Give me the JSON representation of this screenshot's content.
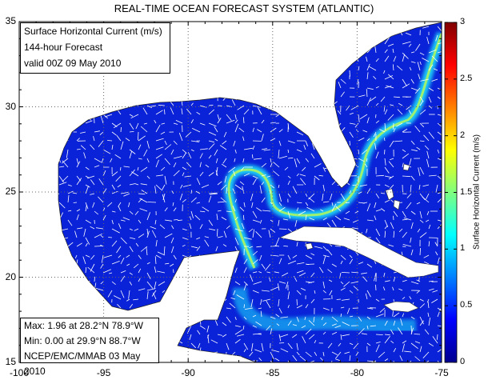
{
  "title": "REAL-TIME OCEAN FORECAST SYSTEM (ATLANTIC)",
  "info_box": {
    "variable": "Surface Horizontal Current (m/s)",
    "forecast": "144-hour Forecast",
    "valid": "valid 00Z 09 May 2010"
  },
  "stats_box": {
    "max": "Max: 1.96 at 28.2°N 78.9°W",
    "min": "Min: 0.00 at 29.9°N 88.7°W",
    "source": "NCEP/EMC/MMAB 03 May 2010"
  },
  "axes": {
    "x_ticks": [
      "-100",
      "-95",
      "-90",
      "-85",
      "-80",
      "-75"
    ],
    "y_ticks": [
      "15",
      "20",
      "25",
      "30",
      "35"
    ],
    "lon_range": [
      -100,
      -75
    ],
    "lat_range": [
      15,
      35
    ],
    "grid": "dotted"
  },
  "colorbar": {
    "label": "Surface Horizontal Current (m/s)",
    "ticks": [
      "0",
      "0.5",
      "1",
      "1.5",
      "2",
      "2.5",
      "3"
    ],
    "range": [
      0,
      3
    ],
    "colormap": "jet"
  },
  "colors": {
    "water": "#0a22d8",
    "land": "#ffffff",
    "current_core": "#e8f020",
    "current_edge": "#20e0f0",
    "vectors": "#ffffff"
  }
}
